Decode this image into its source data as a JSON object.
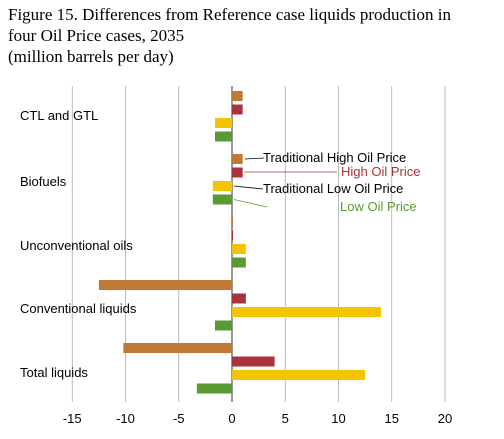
{
  "title_lines": [
    "Figure 15. Differences from Reference case liquids production in",
    "four Oil Price cases, 2035",
    "(million barrels per day)"
  ],
  "chart_data": {
    "type": "bar",
    "orientation": "horizontal",
    "title": "Figure 15. Differences from Reference case liquids production in four Oil Price cases, 2035",
    "subtitle": "(million barrels per day)",
    "xlabel": "",
    "ylabel": "",
    "xlim": [
      -15,
      20
    ],
    "xticks": [
      -15,
      -10,
      -5,
      0,
      5,
      10,
      15,
      20
    ],
    "grid": "vertical",
    "categories": [
      "CTL and GTL",
      "Biofuels",
      "Unconventional oils",
      "Conventional liquids",
      "Total liquids"
    ],
    "series": [
      {
        "name": "Traditional High Oil Price",
        "color": "#c07a35",
        "values": [
          1.0,
          1.0,
          0.1,
          -12.5,
          -10.2
        ]
      },
      {
        "name": "High Oil Price",
        "color": "#a8323e",
        "values": [
          1.0,
          1.0,
          0.1,
          1.3,
          4.0
        ]
      },
      {
        "name": "Traditional Low Oil Price",
        "color": "#f5c400",
        "values": [
          -1.6,
          -1.8,
          1.3,
          14.0,
          12.5
        ]
      },
      {
        "name": "Low Oil Price",
        "color": "#5a9a32",
        "values": [
          -1.6,
          -1.8,
          1.3,
          -1.6,
          -3.3
        ]
      }
    ],
    "legend": {
      "placement": "inline, pointing to Biofuels bars",
      "label_colors": [
        "#000000",
        "#a8323e",
        "#000000",
        "#5a9a32"
      ]
    }
  }
}
